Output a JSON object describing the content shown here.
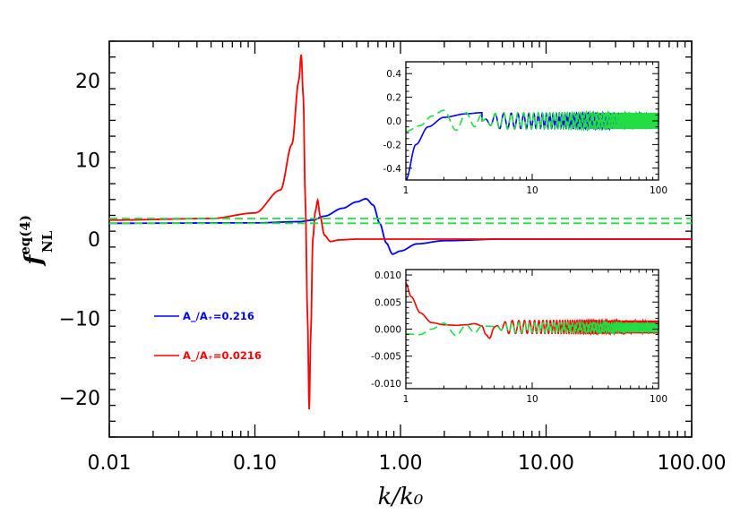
{
  "chart_data": [
    {
      "type": "line",
      "panel": "main",
      "xlabel": "k/k₀",
      "ylabel": "f",
      "ylabel_super": "eq(4)",
      "ylabel_sub": "NL",
      "xscale": "log",
      "xlim": [
        0.01,
        100
      ],
      "ylim": [
        -25,
        25
      ],
      "x_ticks": [
        0.01,
        0.1,
        1,
        10,
        100
      ],
      "x_tick_labels": [
        "0.01",
        "0.10",
        "1.00",
        "10.00",
        "100.00"
      ],
      "y_ticks": [
        -20,
        -10,
        0,
        10,
        20
      ],
      "y_tick_labels": [
        "−20",
        "−10",
        "0",
        "10",
        "20"
      ],
      "legend_position": "middle-left",
      "series": [
        {
          "name": "A_/A₊=0.216",
          "color": "#0000ff",
          "style": "solid",
          "x": [
            0.01,
            0.1,
            0.2,
            0.25,
            0.3,
            0.4,
            0.5,
            0.58,
            0.65,
            0.72,
            0.8,
            0.88,
            1.0,
            1.3,
            2.0,
            5.0,
            100
          ],
          "y": [
            2.0,
            2.05,
            2.2,
            2.4,
            2.9,
            3.9,
            4.7,
            5.1,
            4.3,
            2.0,
            -0.5,
            -1.9,
            -1.5,
            -0.6,
            -0.2,
            0.0,
            0.0
          ]
        },
        {
          "name": "A_/A₊=0.0216",
          "color": "#ff0000",
          "style": "solid",
          "x": [
            0.01,
            0.05,
            0.1,
            0.15,
            0.18,
            0.2,
            0.208,
            0.215,
            0.222,
            0.23,
            0.236,
            0.242,
            0.25,
            0.26,
            0.27,
            0.28,
            0.3,
            0.33,
            0.38,
            0.5,
            0.8,
            1.0,
            100
          ],
          "y": [
            2.4,
            2.6,
            3.3,
            6.2,
            12.0,
            20.0,
            23.3,
            18.0,
            5.0,
            -10.0,
            -21.5,
            -12.0,
            0.0,
            3.5,
            4.9,
            3.0,
            0.5,
            -0.3,
            -0.1,
            0.0,
            0.0,
            0.0,
            0.0
          ]
        },
        {
          "name": "",
          "color": "#22dd44",
          "style": "dashed",
          "x": [
            0.01,
            100
          ],
          "y": [
            2.0,
            2.0
          ]
        },
        {
          "name": "",
          "color": "#22dd44",
          "style": "dashed",
          "x": [
            0.01,
            100
          ],
          "y": [
            2.6,
            2.6
          ]
        }
      ]
    },
    {
      "type": "line",
      "panel": "inset-top",
      "xscale": "log",
      "xlim": [
        1,
        100
      ],
      "ylim": [
        -0.5,
        0.5
      ],
      "x_ticks": [
        1,
        10,
        100
      ],
      "x_tick_labels": [
        "1",
        "10",
        "100"
      ],
      "y_ticks": [
        -0.4,
        -0.2,
        0.0,
        0.2,
        0.4
      ],
      "y_tick_labels": [
        "-0.4",
        "-0.2",
        "0.0",
        "0.2",
        "0.4"
      ],
      "series": [
        {
          "color": "#0000ff",
          "style": "solid",
          "x": [
            1.0,
            1.2,
            1.5,
            2.0,
            3.0,
            4.0
          ],
          "y": [
            -0.5,
            -0.2,
            -0.05,
            0.03,
            0.06,
            0.07
          ],
          "oscillation": {
            "from": 4.0,
            "to": 100,
            "amplitude": 0.065,
            "center": 0.0
          }
        },
        {
          "color": "#22dd44",
          "style": "dashed",
          "x": [
            1.0,
            1.3,
            1.6,
            2.0,
            2.5,
            3.0,
            3.5,
            4.0
          ],
          "y": [
            -0.09,
            -0.04,
            0.04,
            0.09,
            -0.08,
            0.07,
            -0.05,
            0.06
          ],
          "oscillation": {
            "from": 4.0,
            "to": 100,
            "amplitude": 0.07,
            "center": 0.0
          }
        }
      ]
    },
    {
      "type": "line",
      "panel": "inset-bottom",
      "xscale": "log",
      "xlim": [
        1,
        100
      ],
      "ylim": [
        -0.011,
        0.011
      ],
      "x_ticks": [
        1,
        10,
        100
      ],
      "x_tick_labels": [
        "1",
        "10",
        "100"
      ],
      "y_ticks": [
        -0.01,
        -0.005,
        0.0,
        0.005,
        0.01
      ],
      "y_tick_labels": [
        "-0.010",
        "-0.005",
        "0.000",
        "0.005",
        "0.010"
      ],
      "series": [
        {
          "color": "#ff0000",
          "style": "solid",
          "x": [
            1.0,
            1.1,
            1.3,
            1.6,
            2.0,
            2.5,
            3.0,
            3.5,
            4.0,
            4.3,
            4.6,
            5.0
          ],
          "y": [
            0.0085,
            0.006,
            0.003,
            0.0012,
            0.0008,
            0.0007,
            0.0008,
            0.001,
            0.0006,
            -0.001,
            -0.0017,
            0.0003
          ],
          "oscillation": {
            "from": 5.0,
            "to": 100,
            "amplitude": 0.0012,
            "center": 0.0004
          }
        },
        {
          "color": "#22dd44",
          "style": "dashed",
          "x": [
            1.0,
            1.3,
            1.6,
            2.0,
            2.5,
            3.0,
            3.5,
            4.0,
            5.0
          ],
          "y": [
            -0.0009,
            -0.001,
            0.0,
            0.0011,
            -0.0012,
            0.0008,
            -0.0007,
            0.0006,
            0.0005
          ],
          "oscillation": {
            "from": 5.0,
            "to": 100,
            "amplitude": 0.0009,
            "center": 0.0003
          }
        }
      ]
    }
  ]
}
